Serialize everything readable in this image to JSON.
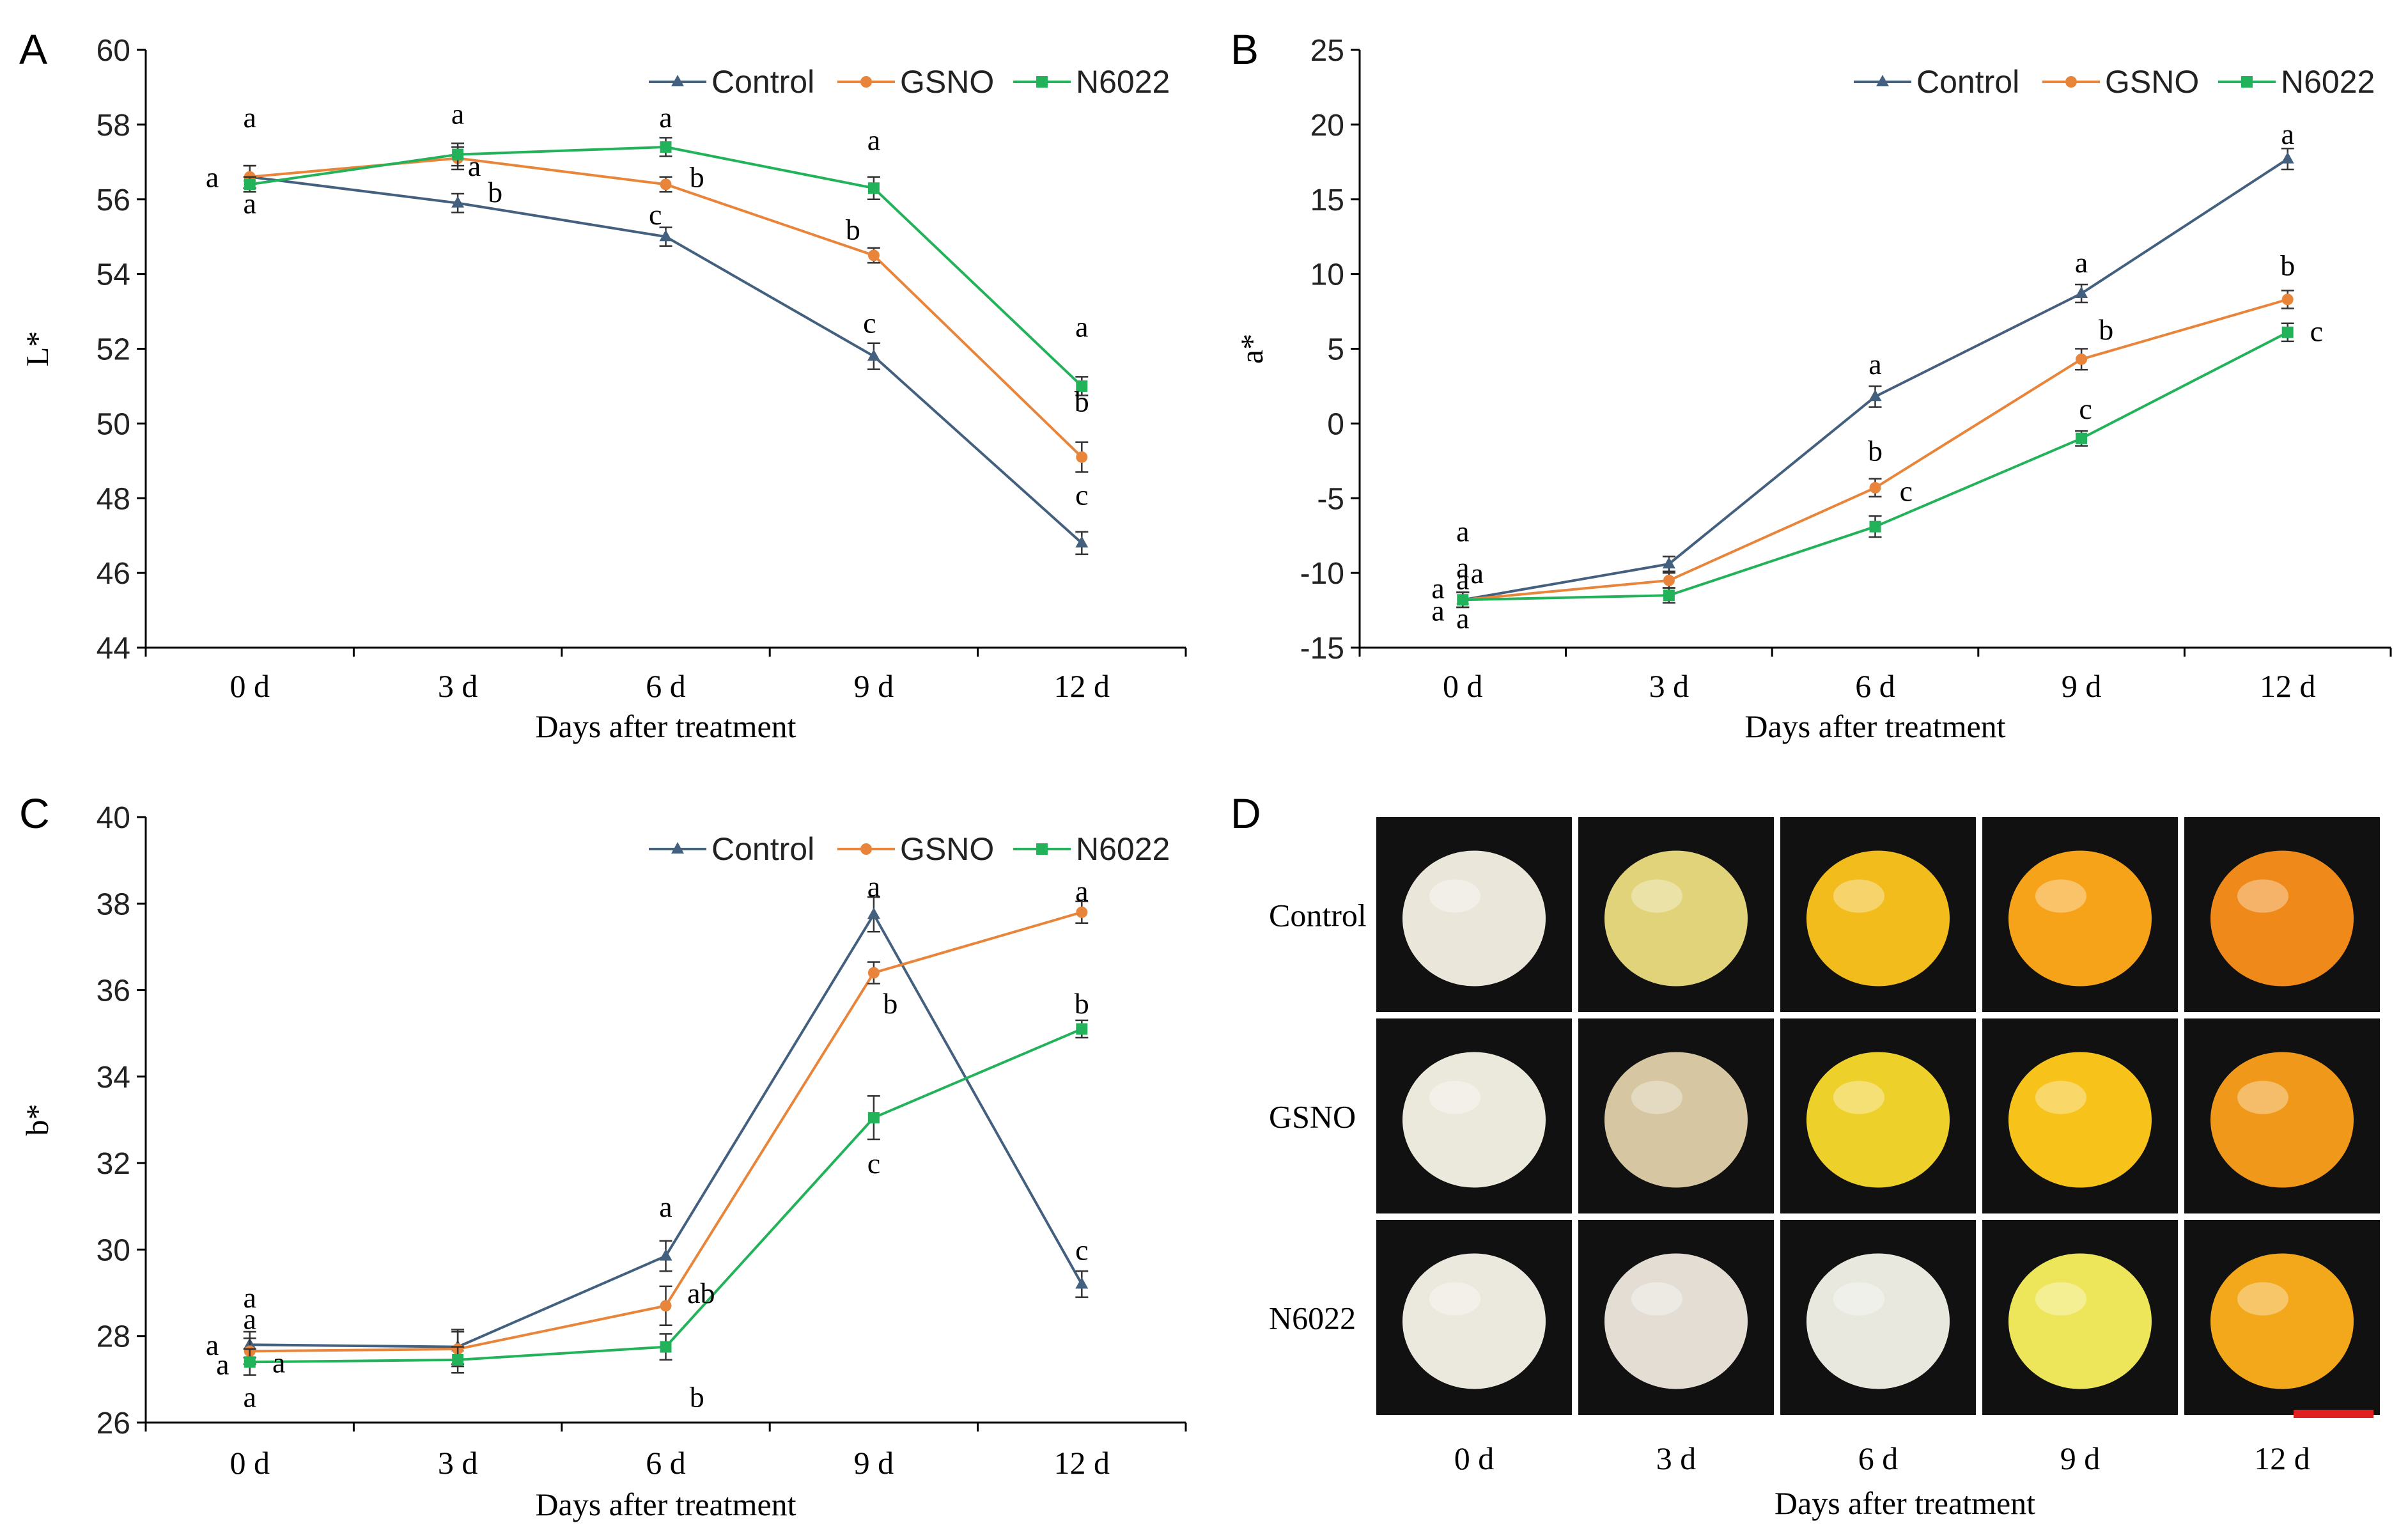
{
  "colors": {
    "control": "#44607f",
    "gsno": "#e8853a",
    "n6022": "#22b35a",
    "axis": "#000000",
    "scalebar": "#e02020",
    "photo_bg": "#111111"
  },
  "chart_data": [
    {
      "panel_letter": "A",
      "type": "line",
      "categories": [
        "0 d",
        "3 d",
        "6 d",
        "9 d",
        "12 d"
      ],
      "xlabel": "Days after treatment",
      "ylabel": "L*",
      "ylim": [
        44,
        60
      ],
      "yticks": [
        44,
        46,
        48,
        50,
        52,
        54,
        56,
        58,
        60
      ],
      "legend": [
        "Control",
        "GSNO",
        "N6022"
      ],
      "legend_position": "top-right",
      "series": [
        {
          "name": "Control",
          "key": "control",
          "values": [
            56.6,
            55.9,
            55.0,
            51.8,
            46.8
          ],
          "errors": [
            0.3,
            0.25,
            0.25,
            0.35,
            0.3
          ]
        },
        {
          "name": "GSNO",
          "key": "gsno",
          "values": [
            56.6,
            57.1,
            56.4,
            54.5,
            49.1
          ],
          "errors": [
            0.3,
            0.3,
            0.2,
            0.2,
            0.4
          ]
        },
        {
          "name": "N6022",
          "key": "n6022",
          "values": [
            56.4,
            57.2,
            57.4,
            56.3,
            51.0
          ],
          "errors": [
            0.2,
            0.3,
            0.25,
            0.3,
            0.25
          ]
        }
      ],
      "annotations": [
        {
          "text": "a",
          "x": 0,
          "y": 58.2
        },
        {
          "text": "a",
          "x": -0.18,
          "y": 56.6
        },
        {
          "text": "a",
          "x": 0,
          "y": 55.9
        },
        {
          "text": "a",
          "x": 1,
          "y": 58.3
        },
        {
          "text": "a",
          "x": 1.08,
          "y": 56.9
        },
        {
          "text": "b",
          "x": 1.18,
          "y": 56.2
        },
        {
          "text": "a",
          "x": 2,
          "y": 58.2
        },
        {
          "text": "b",
          "x": 2.15,
          "y": 56.6
        },
        {
          "text": "c",
          "x": 1.95,
          "y": 55.6
        },
        {
          "text": "a",
          "x": 3,
          "y": 57.6
        },
        {
          "text": "b",
          "x": 2.9,
          "y": 55.2
        },
        {
          "text": "c",
          "x": 2.98,
          "y": 52.7
        },
        {
          "text": "a",
          "x": 4,
          "y": 52.6
        },
        {
          "text": "b",
          "x": 4,
          "y": 50.6
        },
        {
          "text": "c",
          "x": 4,
          "y": 48.1
        }
      ]
    },
    {
      "panel_letter": "B",
      "type": "line",
      "categories": [
        "0 d",
        "3 d",
        "6 d",
        "9 d",
        "12 d"
      ],
      "xlabel": "Days after treatment",
      "ylabel": "a*",
      "ylim": [
        -15,
        25
      ],
      "yticks": [
        -15,
        -10,
        -5,
        0,
        5,
        10,
        15,
        20,
        25
      ],
      "legend": [
        "Control",
        "GSNO",
        "N6022"
      ],
      "legend_position": "top-right",
      "series": [
        {
          "name": "Control",
          "key": "control",
          "values": [
            -11.8,
            -9.4,
            1.8,
            8.7,
            17.7
          ],
          "errors": [
            0.5,
            0.5,
            0.7,
            0.6,
            0.7
          ]
        },
        {
          "name": "GSNO",
          "key": "gsno",
          "values": [
            -11.8,
            -10.5,
            -4.3,
            4.3,
            8.3
          ],
          "errors": [
            0.5,
            0.5,
            0.6,
            0.7,
            0.6
          ]
        },
        {
          "name": "N6022",
          "key": "n6022",
          "values": [
            -11.8,
            -11.5,
            -6.9,
            -1.0,
            6.1
          ],
          "errors": [
            0.5,
            0.5,
            0.7,
            0.5,
            0.6
          ]
        }
      ],
      "annotations": [
        {
          "text": "a",
          "x": 0,
          "y": -9.6
        },
        {
          "text": "a",
          "x": -0.12,
          "y": -11.0
        },
        {
          "text": "a",
          "x": -0.12,
          "y": -12.5
        },
        {
          "text": "a",
          "x": 0,
          "y": -10.4
        },
        {
          "text": "a",
          "x": 0,
          "y": -7.2
        },
        {
          "text": "a",
          "x": 0.07,
          "y": -10.0
        },
        {
          "text": "a",
          "x": 0,
          "y": -13.0
        },
        {
          "text": "a",
          "x": 2,
          "y": 4.0
        },
        {
          "text": "b",
          "x": 2,
          "y": -1.8
        },
        {
          "text": "c",
          "x": 2.15,
          "y": -4.5
        },
        {
          "text": "a",
          "x": 3,
          "y": 10.8
        },
        {
          "text": "b",
          "x": 3.12,
          "y": 6.3
        },
        {
          "text": "c",
          "x": 3.02,
          "y": 1.0
        },
        {
          "text": "a",
          "x": 4,
          "y": 19.4
        },
        {
          "text": "b",
          "x": 4,
          "y": 10.6
        },
        {
          "text": "c",
          "x": 4.14,
          "y": 6.2
        }
      ]
    },
    {
      "panel_letter": "C",
      "type": "line",
      "categories": [
        "0 d",
        "3 d",
        "6 d",
        "9 d",
        "12 d"
      ],
      "xlabel": "Days after treatment",
      "ylabel": "b*",
      "ylim": [
        26,
        40
      ],
      "yticks": [
        26,
        28,
        30,
        32,
        34,
        36,
        38,
        40
      ],
      "legend": [
        "Control",
        "GSNO",
        "N6022"
      ],
      "legend_position": "top-right",
      "series": [
        {
          "name": "Control",
          "key": "control",
          "values": [
            27.8,
            27.75,
            29.85,
            37.75,
            29.2
          ],
          "errors": [
            0.3,
            0.4,
            0.35,
            0.4,
            0.3
          ]
        },
        {
          "name": "GSNO",
          "key": "gsno",
          "values": [
            27.65,
            27.7,
            28.7,
            36.4,
            37.8
          ],
          "errors": [
            0.3,
            0.4,
            0.45,
            0.25,
            0.25
          ]
        },
        {
          "name": "N6022",
          "key": "n6022",
          "values": [
            27.4,
            27.45,
            27.75,
            33.05,
            35.1
          ],
          "errors": [
            0.3,
            0.3,
            0.3,
            0.5,
            0.2
          ]
        }
      ],
      "annotations": [
        {
          "text": "a",
          "x": 0,
          "y": 28.4
        },
        {
          "text": "a",
          "x": -0.18,
          "y": 27.8
        },
        {
          "text": "a",
          "x": -0.13,
          "y": 27.35
        },
        {
          "text": "a",
          "x": 0,
          "y": 28.9
        },
        {
          "text": "a",
          "x": 0.14,
          "y": 27.4
        },
        {
          "text": "a",
          "x": 0,
          "y": 26.6
        },
        {
          "text": "a",
          "x": 2,
          "y": 31.0
        },
        {
          "text": "ab",
          "x": 2.17,
          "y": 29.0
        },
        {
          "text": "b",
          "x": 2.15,
          "y": 26.6
        },
        {
          "text": "a",
          "x": 3,
          "y": 38.4
        },
        {
          "text": "b",
          "x": 3.08,
          "y": 35.7
        },
        {
          "text": "c",
          "x": 3,
          "y": 32.0
        },
        {
          "text": "a",
          "x": 4,
          "y": 38.3
        },
        {
          "text": "b",
          "x": 4,
          "y": 35.7
        },
        {
          "text": "c",
          "x": 4,
          "y": 30.0
        }
      ]
    }
  ],
  "panel_d": {
    "letter": "D",
    "row_labels": [
      "Control",
      "GSNO",
      "N6022"
    ],
    "col_labels": [
      "0 d",
      "3 d",
      "6 d",
      "9 d",
      "12 d"
    ],
    "xlabel": "Days after treatment",
    "fruit_colors": [
      [
        "#eae7da",
        "#e0d37a",
        "#f2bd1c",
        "#f7a31a",
        "#ef8a1a"
      ],
      [
        "#ebe8dc",
        "#d6c6a2",
        "#eed02a",
        "#f7c21a",
        "#f0981a"
      ],
      [
        "#ebe9dd",
        "#e4ddd4",
        "#e9e8df",
        "#eee65a",
        "#f2a81a"
      ]
    ]
  }
}
